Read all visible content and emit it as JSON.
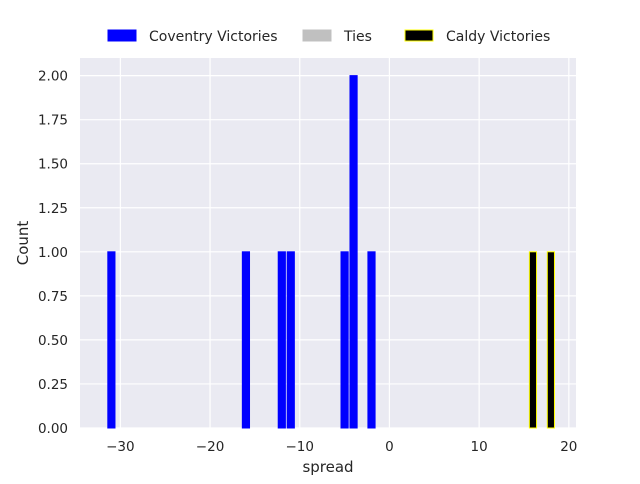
{
  "chart_data": {
    "type": "bar",
    "xlabel": "spread",
    "ylabel": "Count",
    "xlim": [
      -34.5,
      20.8
    ],
    "ylim": [
      0,
      2.1
    ],
    "xticks": [
      -30,
      -20,
      -10,
      0,
      10,
      20
    ],
    "xtick_labels": [
      "−30",
      "−20",
      "−10",
      "0",
      "10",
      "20"
    ],
    "yticks": [
      0,
      0.25,
      0.5,
      0.75,
      1.0,
      1.25,
      1.5,
      1.75,
      2.0
    ],
    "ytick_labels": [
      "0.00",
      "0.25",
      "0.50",
      "0.75",
      "1.00",
      "1.25",
      "1.50",
      "1.75",
      "2.00"
    ],
    "grid": true,
    "legend_position": "top-center",
    "bar_width": 0.8,
    "series": [
      {
        "name": "Coventry Victories",
        "color": "#0000ff",
        "edge": "#0000ff",
        "x": [
          -31,
          -16,
          -12,
          -11,
          -5,
          -4,
          -2
        ],
        "values": [
          1,
          1,
          1,
          1,
          1,
          2,
          1
        ]
      },
      {
        "name": "Ties",
        "color": "#c0c0c0",
        "edge": "#c0c0c0",
        "x": [],
        "values": []
      },
      {
        "name": "Caldy Victories",
        "color": "#000000",
        "edge": "#ffff00",
        "x": [
          16,
          18
        ],
        "values": [
          1,
          1
        ]
      }
    ]
  }
}
